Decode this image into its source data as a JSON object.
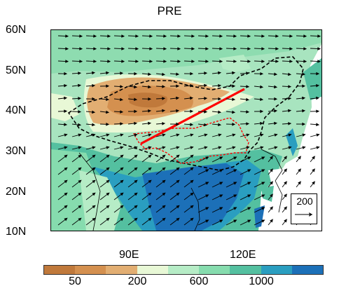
{
  "title": "PRE",
  "latitude_labels": [
    "60N",
    "50N",
    "40N",
    "30N",
    "20N",
    "10N"
  ],
  "longitude_labels": [
    "90E",
    "120E"
  ],
  "colorbar": {
    "colors": [
      "#c0793b",
      "#d4904f",
      "#e2ae72",
      "#e8f8d6",
      "#b6ecc6",
      "#86dcae",
      "#54c0a0",
      "#2a9ec0",
      "#1c70b8"
    ],
    "labels": [
      "50",
      "200",
      "600",
      "1000"
    ]
  },
  "reference_vector": {
    "label": "200"
  },
  "overlays": {
    "transect_line_color": "#ff0000",
    "region_outline_color": "#ff0000",
    "country_border": "dashed black"
  }
}
